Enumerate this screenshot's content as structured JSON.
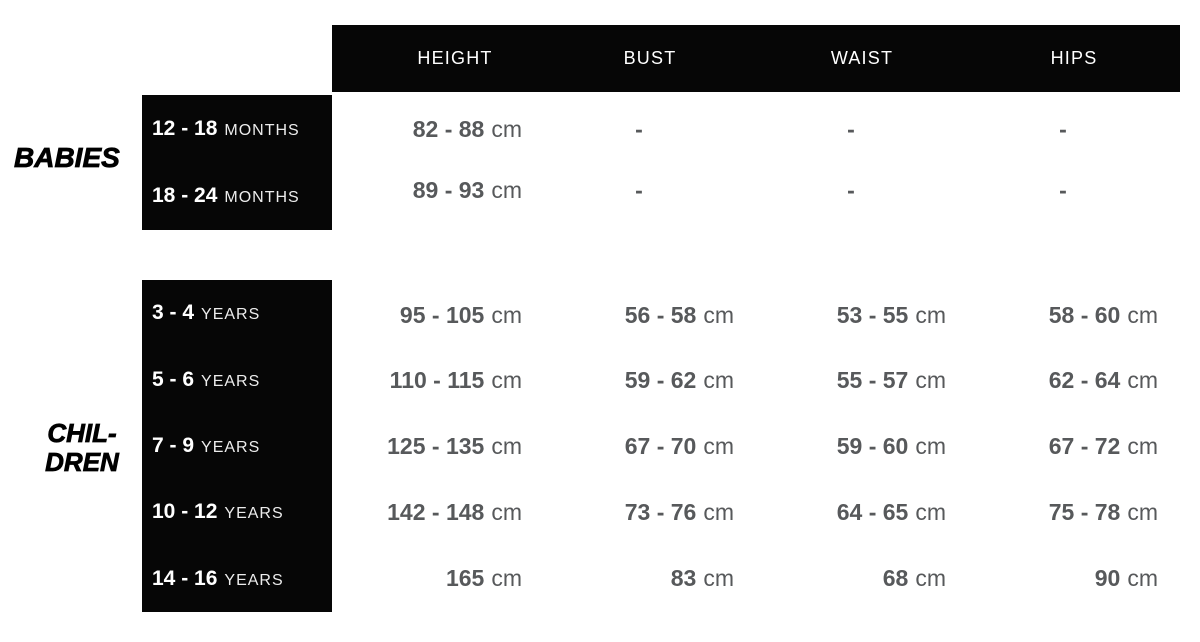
{
  "header": {
    "columns": [
      "HEIGHT",
      "BUST",
      "WAIST",
      "HIPS"
    ]
  },
  "groups": [
    {
      "label": "BABIES",
      "label_lines": [
        "BABIES"
      ],
      "rows": [
        {
          "range": "12 - 18",
          "range_unit": "MONTHS",
          "cells": [
            {
              "num": "82 - 88",
              "unit": "cm"
            },
            {
              "num": "-",
              "unit": ""
            },
            {
              "num": "-",
              "unit": ""
            },
            {
              "num": "-",
              "unit": ""
            }
          ]
        },
        {
          "range": "18 - 24",
          "range_unit": "MONTHS",
          "cells": [
            {
              "num": "89 - 93",
              "unit": "cm"
            },
            {
              "num": "-",
              "unit": ""
            },
            {
              "num": "-",
              "unit": ""
            },
            {
              "num": "-",
              "unit": ""
            }
          ]
        }
      ]
    },
    {
      "label": "CHILDREN",
      "label_lines": [
        "CHIL-",
        "DREN"
      ],
      "rows": [
        {
          "range": "3 - 4",
          "range_unit": "YEARS",
          "cells": [
            {
              "num": "95 - 105",
              "unit": "cm"
            },
            {
              "num": "56 - 58",
              "unit": "cm"
            },
            {
              "num": "53 - 55",
              "unit": "cm"
            },
            {
              "num": "58 - 60",
              "unit": "cm"
            }
          ]
        },
        {
          "range": "5 - 6",
          "range_unit": "YEARS",
          "cells": [
            {
              "num": "110 - 115",
              "unit": "cm"
            },
            {
              "num": "59 - 62",
              "unit": "cm"
            },
            {
              "num": "55 - 57",
              "unit": "cm"
            },
            {
              "num": "62 - 64",
              "unit": "cm"
            }
          ]
        },
        {
          "range": "7 - 9",
          "range_unit": "YEARS",
          "cells": [
            {
              "num": "125 - 135",
              "unit": "cm"
            },
            {
              "num": "67 - 70",
              "unit": "cm"
            },
            {
              "num": "59 - 60",
              "unit": "cm"
            },
            {
              "num": "67 - 72",
              "unit": "cm"
            }
          ]
        },
        {
          "range": "10 - 12",
          "range_unit": "YEARS",
          "cells": [
            {
              "num": "142 - 148",
              "unit": "cm"
            },
            {
              "num": "73 - 76",
              "unit": "cm"
            },
            {
              "num": "64 - 65",
              "unit": "cm"
            },
            {
              "num": "75 - 78",
              "unit": "cm"
            }
          ]
        },
        {
          "range": "14 - 16",
          "range_unit": "YEARS",
          "cells": [
            {
              "num": "165",
              "unit": "cm"
            },
            {
              "num": "83",
              "unit": "cm"
            },
            {
              "num": "68",
              "unit": "cm"
            },
            {
              "num": "90",
              "unit": "cm"
            }
          ]
        }
      ]
    }
  ],
  "colors": {
    "bar_black": "#060606",
    "value_gray": "#57595B",
    "unit_light": "#ececec",
    "header_white": "#ffffff"
  },
  "chart_data": {
    "type": "table",
    "title": "Kids size chart (babies and children body measurements)",
    "column_headers": [
      "HEIGHT",
      "BUST",
      "WAIST",
      "HIPS"
    ],
    "unit": "cm",
    "row_groups": [
      {
        "group": "BABIES",
        "rows": [
          {
            "label": "12 - 18 MONTHS",
            "height": "82 - 88 cm",
            "bust": "-",
            "waist": "-",
            "hips": "-"
          },
          {
            "label": "18 - 24 MONTHS",
            "height": "89 - 93 cm",
            "bust": "-",
            "waist": "-",
            "hips": "-"
          }
        ]
      },
      {
        "group": "CHILDREN",
        "rows": [
          {
            "label": "3 - 4 YEARS",
            "height": "95 - 105 cm",
            "bust": "56 - 58 cm",
            "waist": "53 - 55 cm",
            "hips": "58 - 60 cm"
          },
          {
            "label": "5 - 6 YEARS",
            "height": "110 - 115 cm",
            "bust": "59 - 62 cm",
            "waist": "55 - 57 cm",
            "hips": "62 - 64 cm"
          },
          {
            "label": "7 - 9 YEARS",
            "height": "125 - 135 cm",
            "bust": "67 - 70 cm",
            "waist": "59 - 60 cm",
            "hips": "67 - 72 cm"
          },
          {
            "label": "10 - 12 YEARS",
            "height": "142 - 148 cm",
            "bust": "73 - 76 cm",
            "waist": "64 - 65 cm",
            "hips": "75 - 78 cm"
          },
          {
            "label": "14 - 16 YEARS",
            "height": "165 cm",
            "bust": "83 cm",
            "waist": "68 cm",
            "hips": "90 cm"
          }
        ]
      }
    ],
    "layout": "matrix table, black header bar on top, black row-label boxes on left, values right-aligned, grid off"
  }
}
